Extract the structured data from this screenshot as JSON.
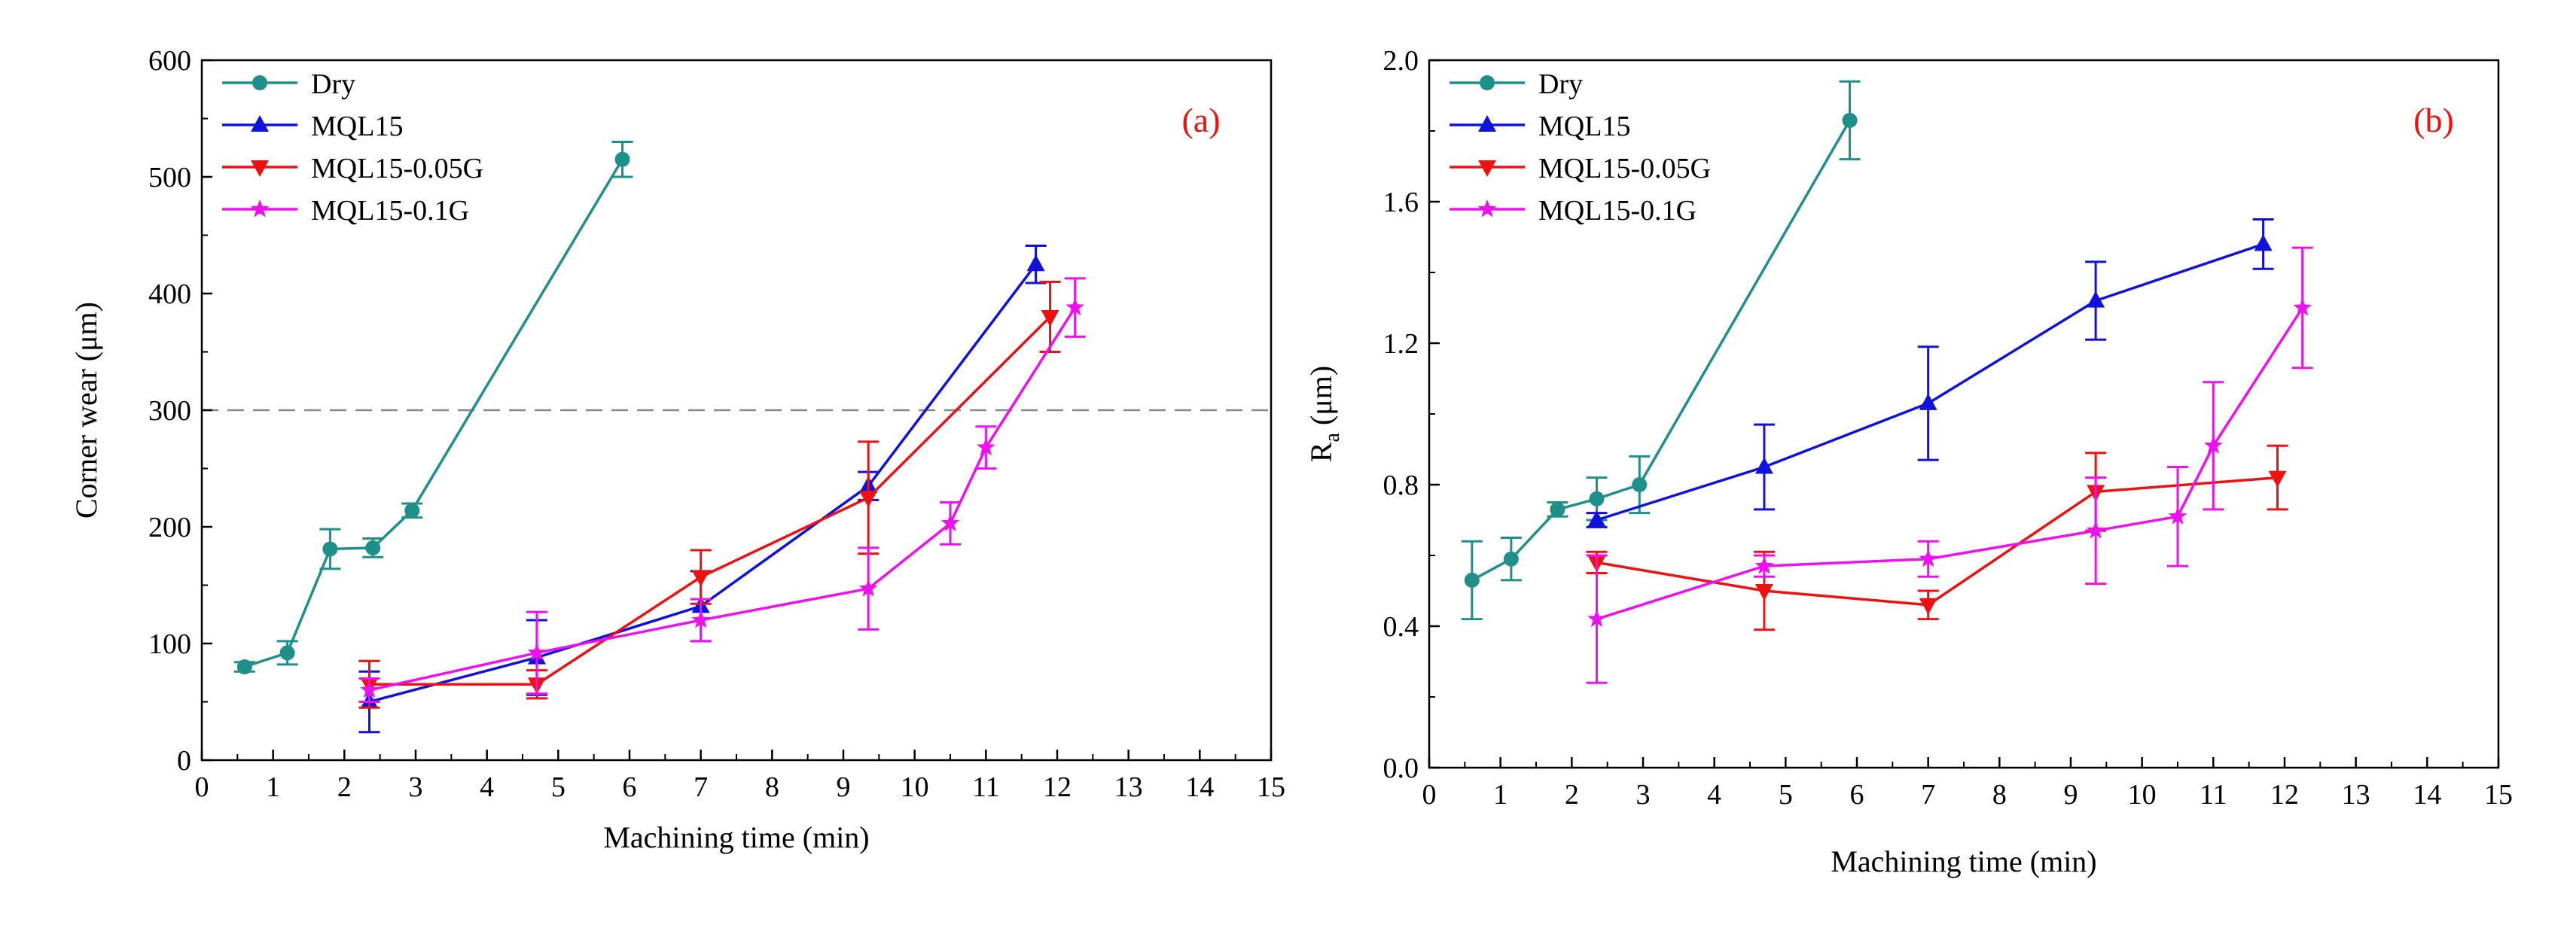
{
  "chart_data": [
    {
      "type": "line",
      "panel_label": "(a)",
      "xlabel": "Machining time (min)",
      "ylabel": "Corner wear (μm)",
      "xlim": [
        0,
        15
      ],
      "ylim": [
        0,
        600
      ],
      "x_ticks": [
        "0",
        "1",
        "2",
        "3",
        "4",
        "5",
        "6",
        "7",
        "8",
        "9",
        "10",
        "11",
        "12",
        "13",
        "14",
        "15"
      ],
      "y_ticks": [
        "0",
        "100",
        "200",
        "300",
        "400",
        "500",
        "600"
      ],
      "reference_line": {
        "y": 300,
        "style": "dashed"
      },
      "legend_position": "top-left",
      "series": [
        {
          "name": "Dry",
          "color": "#1f8f8a",
          "marker": "circle",
          "x": [
            0.6,
            1.2,
            1.8,
            2.4,
            2.95,
            5.9
          ],
          "y": [
            80,
            92,
            181,
            182,
            214,
            515
          ],
          "err": [
            4,
            10,
            17,
            8,
            6,
            15
          ]
        },
        {
          "name": "MQL15",
          "color": "#1111dd",
          "marker": "triangle-up",
          "x": [
            2.35,
            4.7,
            7.0,
            9.35,
            11.7
          ],
          "y": [
            50,
            88,
            132,
            235,
            425
          ],
          "err": [
            26,
            32,
            30,
            12,
            16
          ]
        },
        {
          "name": "MQL15-0.05G",
          "color": "#ee1111",
          "marker": "triangle-down",
          "x": [
            2.35,
            4.7,
            7.0,
            9.35,
            11.9
          ],
          "y": [
            65,
            65,
            157,
            225,
            380
          ],
          "err": [
            20,
            12,
            23,
            48,
            30
          ]
        },
        {
          "name": "MQL15-0.1G",
          "color": "#ee11ee",
          "marker": "star",
          "x": [
            2.35,
            4.7,
            7.0,
            9.35,
            10.5,
            11.0,
            12.25
          ],
          "y": [
            60,
            92,
            120,
            147,
            203,
            268,
            388
          ],
          "err": [
            10,
            35,
            18,
            35,
            18,
            18,
            25
          ]
        }
      ]
    },
    {
      "type": "line",
      "panel_label": "(b)",
      "xlabel": "Machining time (min)",
      "ylabel": "R",
      "ylabel_subscript": "a",
      "ylabel_suffix": " (μm)",
      "xlim": [
        0,
        15
      ],
      "ylim": [
        0,
        2.0
      ],
      "x_ticks": [
        "0",
        "1",
        "2",
        "3",
        "4",
        "5",
        "6",
        "7",
        "8",
        "9",
        "10",
        "11",
        "12",
        "13",
        "14",
        "15"
      ],
      "y_ticks": [
        "0.0",
        "0.4",
        "0.8",
        "1.2",
        "1.6",
        "2.0"
      ],
      "legend_position": "top-left",
      "series": [
        {
          "name": "Dry",
          "color": "#1f8f8a",
          "marker": "circle",
          "x": [
            0.6,
            1.15,
            1.8,
            2.35,
            2.95,
            5.9
          ],
          "y": [
            0.53,
            0.59,
            0.73,
            0.76,
            0.8,
            1.83
          ],
          "err": [
            0.11,
            0.06,
            0.02,
            0.06,
            0.08,
            0.11
          ]
        },
        {
          "name": "MQL15",
          "color": "#1111dd",
          "marker": "triangle-up",
          "x": [
            2.35,
            4.7,
            7.0,
            9.35,
            11.7
          ],
          "y": [
            0.7,
            0.85,
            1.03,
            1.32,
            1.48
          ],
          "err": [
            0.02,
            0.12,
            0.16,
            0.11,
            0.07
          ]
        },
        {
          "name": "MQL15-0.05G",
          "color": "#ee1111",
          "marker": "triangle-down",
          "x": [
            2.35,
            4.7,
            7.0,
            9.35,
            11.9
          ],
          "y": [
            0.58,
            0.5,
            0.46,
            0.78,
            0.82
          ],
          "err": [
            0.03,
            0.11,
            0.04,
            0.11,
            0.09
          ]
        },
        {
          "name": "MQL15-0.1G",
          "color": "#ee11ee",
          "marker": "star",
          "x": [
            2.35,
            4.7,
            7.0,
            9.35,
            10.5,
            11.0,
            12.25
          ],
          "y": [
            0.42,
            0.57,
            0.59,
            0.67,
            0.71,
            0.91,
            1.3
          ],
          "err": [
            0.18,
            0.03,
            0.05,
            0.15,
            0.14,
            0.18,
            0.17
          ]
        }
      ]
    }
  ]
}
